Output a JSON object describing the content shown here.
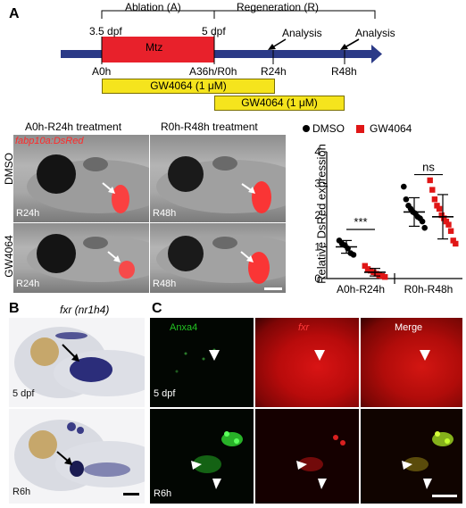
{
  "panel_letters": {
    "a": "A",
    "b": "B",
    "c": "C"
  },
  "timeline": {
    "ablation": "Ablation (A)",
    "regeneration": "Regeneration (R)",
    "dpf_start": "3.5 dpf",
    "dpf_end": "5 dpf",
    "mtz": "Mtz",
    "analysis1": "Analysis",
    "analysis2": "Analysis",
    "t_a0": "A0h",
    "t_a36": "A36h/R0h",
    "t_r24": "R24h",
    "t_r48": "R48h",
    "gw_bar1": "GW4064 (1 μM)",
    "gw_bar2": "GW4064 (1 μM)",
    "colors": {
      "mtz_bar": "#e8212b",
      "timeline": "#2b3a87",
      "gw_bar": "#f5e41d"
    }
  },
  "panel_a_images": {
    "col1": "A0h-R24h treatment",
    "col2": "R0h-R48h treatment",
    "transgene": "fabp10a:DsRed",
    "row1": "DMSO",
    "row2": "GW4064",
    "tag_r24_top": "R24h",
    "tag_r48_top": "R48h",
    "tag_r24_bottom": "R24h",
    "tag_r48_bottom": "R48h"
  },
  "chart_data": {
    "type": "scatter",
    "legend": [
      {
        "name": "DMSO",
        "marker": "circle",
        "color": "#000000"
      },
      {
        "name": "GW4064",
        "marker": "square",
        "color": "#e01616"
      }
    ],
    "categories": [
      "A0h-R24h",
      "R0h-R48h"
    ],
    "ylabel": "Relative DsRed expression",
    "ylim": [
      0,
      4
    ],
    "yticks": [
      "0",
      "1",
      "2",
      "3",
      "4"
    ],
    "significance": [
      "***",
      "ns"
    ],
    "series": [
      {
        "name": "DMSO",
        "group": "A0h-R24h",
        "points": [
          1.2,
          1.1,
          1.05,
          0.95,
          0.8,
          0.75
        ],
        "mean": 1.0,
        "sd": 0.2
      },
      {
        "name": "GW4064",
        "group": "A0h-R24h",
        "points": [
          0.4,
          0.3,
          0.25,
          0.2,
          0.15,
          0.1,
          0.08,
          0.05
        ],
        "mean": 0.2,
        "sd": 0.12
      },
      {
        "name": "DMSO",
        "group": "R0h-R48h",
        "points": [
          2.9,
          2.5,
          2.3,
          2.2,
          2.1,
          2.05,
          1.95,
          1.9,
          1.8,
          1.6
        ],
        "mean": 2.1,
        "sd": 0.45
      },
      {
        "name": "GW4064",
        "group": "R0h-R48h",
        "points": [
          3.1,
          2.8,
          2.5,
          2.3,
          2.2,
          2.0,
          1.9,
          1.8,
          1.7,
          1.5,
          1.2,
          1.1
        ],
        "mean": 1.95,
        "sd": 0.7
      }
    ]
  },
  "panel_b": {
    "title": "fxr (nr1h4)",
    "tag_top": "5 dpf",
    "tag_bottom": "R6h"
  },
  "panel_c": {
    "anxa4": "Anxa4",
    "fxr": "fxr",
    "merge": "Merge",
    "tag_top": "5 dpf",
    "tag_bottom": "R6h",
    "colors": {
      "anxa4": "#22c322",
      "fxr": "#e8212b"
    }
  }
}
